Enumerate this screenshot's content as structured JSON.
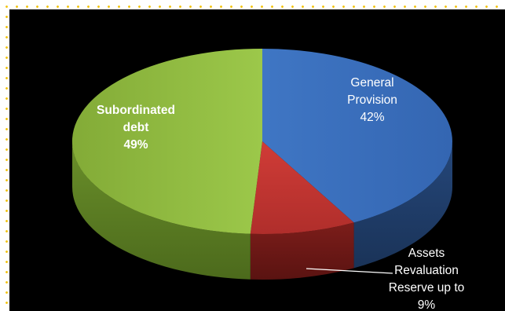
{
  "chart_data": {
    "type": "pie",
    "style": "3d",
    "background": "#000000",
    "slices": [
      {
        "label_lines": [
          "Subordinated",
          "debt"
        ],
        "value_text": "49%",
        "value": 49,
        "color": "#8db63c"
      },
      {
        "label_lines": [
          "General",
          "Provision"
        ],
        "value_text": "42%",
        "value": 42,
        "color": "#3d72c0"
      },
      {
        "label_lines": [
          "Assets",
          "Revaluation",
          "Reserve up to"
        ],
        "value_text": "9%",
        "value": 9,
        "color": "#c23531"
      }
    ]
  }
}
